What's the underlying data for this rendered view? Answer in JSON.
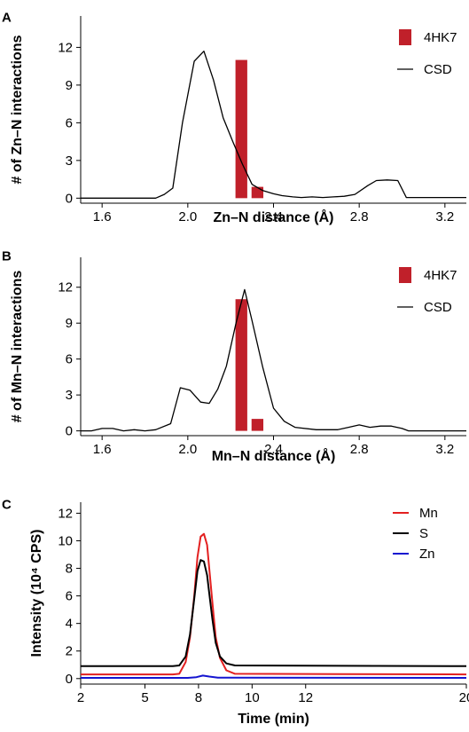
{
  "chart_data": [
    {
      "type": "bar",
      "panel_label": "A",
      "xlabel": "Zn–N distance (Å)",
      "ylabel": "# of Zn–N interactions",
      "xlim": [
        1.5,
        3.3
      ],
      "ylim": [
        -0.4,
        14.5
      ],
      "xticks": [
        1.6,
        2.0,
        2.4,
        2.8,
        3.2
      ],
      "xtick_labels": [
        "1.6",
        "2.0",
        "2.4",
        "2.8",
        "3.2"
      ],
      "yticks": [
        0,
        3,
        6,
        9,
        12
      ],
      "ytick_labels": [
        "0",
        "3",
        "6",
        "9",
        "12"
      ],
      "legend": "top-right",
      "colors": {
        "bar": "#c0202a",
        "line": "#000000"
      },
      "series": [
        {
          "name": "4HK7",
          "kind": "bar",
          "bar_width": 0.055,
          "x": [
            2.25,
            2.325
          ],
          "values": [
            11,
            0.9
          ]
        },
        {
          "name": "CSD",
          "kind": "line",
          "x": [
            1.5,
            1.85,
            1.89,
            1.93,
            1.975,
            2.03,
            2.075,
            2.12,
            2.165,
            2.21,
            2.255,
            2.3,
            2.35,
            2.4,
            2.44,
            2.49,
            2.53,
            2.58,
            2.63,
            2.68,
            2.73,
            2.78,
            2.84,
            2.88,
            2.93,
            2.98,
            3.02,
            3.3
          ],
          "y": [
            0,
            0,
            0.3,
            0.8,
            6.0,
            10.9,
            11.7,
            9.4,
            6.4,
            4.5,
            2.7,
            1.1,
            0.6,
            0.35,
            0.2,
            0.1,
            0.05,
            0.1,
            0.05,
            0.1,
            0.15,
            0.3,
            1.0,
            1.4,
            1.45,
            1.4,
            0.05,
            0.05
          ]
        }
      ]
    },
    {
      "type": "bar",
      "panel_label": "B",
      "xlabel": "Mn–N distance (Å)",
      "ylabel": "# of Mn–N interactions",
      "xlim": [
        1.5,
        3.3
      ],
      "ylim": [
        -0.4,
        14.5
      ],
      "xticks": [
        1.6,
        2.0,
        2.4,
        2.8,
        3.2
      ],
      "xtick_labels": [
        "1.6",
        "2.0",
        "2.4",
        "2.8",
        "3.2"
      ],
      "yticks": [
        0,
        3,
        6,
        9,
        12
      ],
      "ytick_labels": [
        "0",
        "3",
        "6",
        "9",
        "12"
      ],
      "legend": "top-right",
      "colors": {
        "bar": "#c0202a",
        "line": "#000000"
      },
      "series": [
        {
          "name": "4HK7",
          "kind": "bar",
          "bar_width": 0.055,
          "x": [
            2.25,
            2.325
          ],
          "values": [
            11,
            1
          ]
        },
        {
          "name": "CSD",
          "kind": "line",
          "x": [
            1.5,
            1.55,
            1.6,
            1.65,
            1.7,
            1.75,
            1.8,
            1.85,
            1.92,
            1.965,
            2.01,
            2.06,
            2.1,
            2.14,
            2.18,
            2.225,
            2.265,
            2.3,
            2.35,
            2.4,
            2.45,
            2.5,
            2.6,
            2.7,
            2.75,
            2.8,
            2.85,
            2.9,
            2.95,
            3.0,
            3.03,
            3.3
          ],
          "y": [
            0,
            0,
            0.2,
            0.2,
            0,
            0.1,
            0,
            0.1,
            0.6,
            3.6,
            3.4,
            2.4,
            2.3,
            3.5,
            5.4,
            9.0,
            11.8,
            9.2,
            5.3,
            1.9,
            0.8,
            0.3,
            0.1,
            0.1,
            0.3,
            0.5,
            0.3,
            0.4,
            0.4,
            0.2,
            0,
            0
          ]
        }
      ]
    },
    {
      "type": "line",
      "panel_label": "C",
      "xlabel": "Time (min)",
      "ylabel": "Intensity (10⁴ CPS)",
      "xlim": [
        2,
        20
      ],
      "ylim": [
        -0.4,
        12.8
      ],
      "xticks": [
        2,
        5,
        7.5,
        10,
        12.5,
        20
      ],
      "xtick_labels": [
        "2",
        "5",
        "8",
        "10",
        "12",
        "20"
      ],
      "yticks": [
        0,
        2,
        4,
        6,
        8,
        10,
        12
      ],
      "ytick_labels": [
        "0",
        "2",
        "4",
        "6",
        "8",
        "10",
        "12"
      ],
      "legend": "top-right",
      "series": [
        {
          "name": "Mn",
          "color": "#e32020",
          "x": [
            2,
            6.3,
            6.6,
            6.9,
            7.1,
            7.3,
            7.45,
            7.6,
            7.75,
            7.9,
            8.0,
            8.15,
            8.3,
            8.5,
            8.8,
            9.2,
            20
          ],
          "y": [
            0.3,
            0.3,
            0.35,
            1.2,
            3.0,
            6.0,
            8.8,
            10.3,
            10.5,
            9.7,
            8.0,
            5.5,
            3.0,
            1.5,
            0.6,
            0.35,
            0.3
          ]
        },
        {
          "name": "S",
          "color": "#000000",
          "x": [
            2,
            6.3,
            6.6,
            6.9,
            7.1,
            7.3,
            7.45,
            7.6,
            7.75,
            7.9,
            8.0,
            8.15,
            8.3,
            8.5,
            8.8,
            9.2,
            20
          ],
          "y": [
            0.9,
            0.9,
            0.95,
            1.6,
            3.2,
            5.8,
            7.8,
            8.6,
            8.5,
            7.5,
            6.2,
            4.3,
            2.6,
            1.6,
            1.1,
            0.95,
            0.9
          ]
        },
        {
          "name": "Zn",
          "color": "#1414d0",
          "x": [
            2,
            7.0,
            7.4,
            7.7,
            8.0,
            8.4,
            20
          ],
          "y": [
            0.05,
            0.05,
            0.1,
            0.22,
            0.15,
            0.07,
            0.05
          ]
        }
      ]
    }
  ]
}
